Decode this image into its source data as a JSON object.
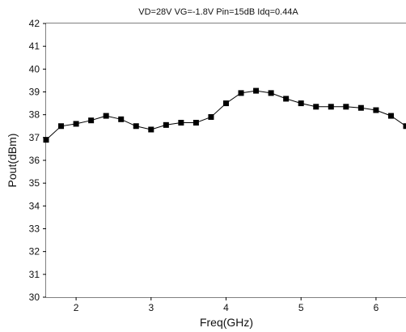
{
  "chart_data": {
    "type": "line",
    "title": "VD=28V   VG=-1.8V   Pin=15dB   Idq=0.44A",
    "xlabel": "Freq(GHz)",
    "ylabel": "Pout(dBm)",
    "xlim": [
      1.6,
      6.4
    ],
    "ylim": [
      30,
      42
    ],
    "xticks": [
      2,
      3,
      4,
      5,
      6
    ],
    "yticks": [
      30,
      31,
      32,
      33,
      34,
      35,
      36,
      37,
      38,
      39,
      40,
      41,
      42
    ],
    "grid": true,
    "legend": "none",
    "series": [
      {
        "color": "#000000",
        "marker": "square",
        "x": [
          1.6,
          1.8,
          2.0,
          2.2,
          2.4,
          2.6,
          2.8,
          3.0,
          3.2,
          3.4,
          3.6,
          3.8,
          4.0,
          4.2,
          4.4,
          4.6,
          4.8,
          5.0,
          5.2,
          5.4,
          5.6,
          5.8,
          6.0,
          6.2,
          6.4
        ],
        "y": [
          36.9,
          37.5,
          37.6,
          37.75,
          37.95,
          37.8,
          37.5,
          37.35,
          37.55,
          37.65,
          37.65,
          37.9,
          38.5,
          38.95,
          39.05,
          38.95,
          38.7,
          38.5,
          38.35,
          38.35,
          38.35,
          38.3,
          38.2,
          37.95,
          37.5
        ]
      }
    ]
  }
}
